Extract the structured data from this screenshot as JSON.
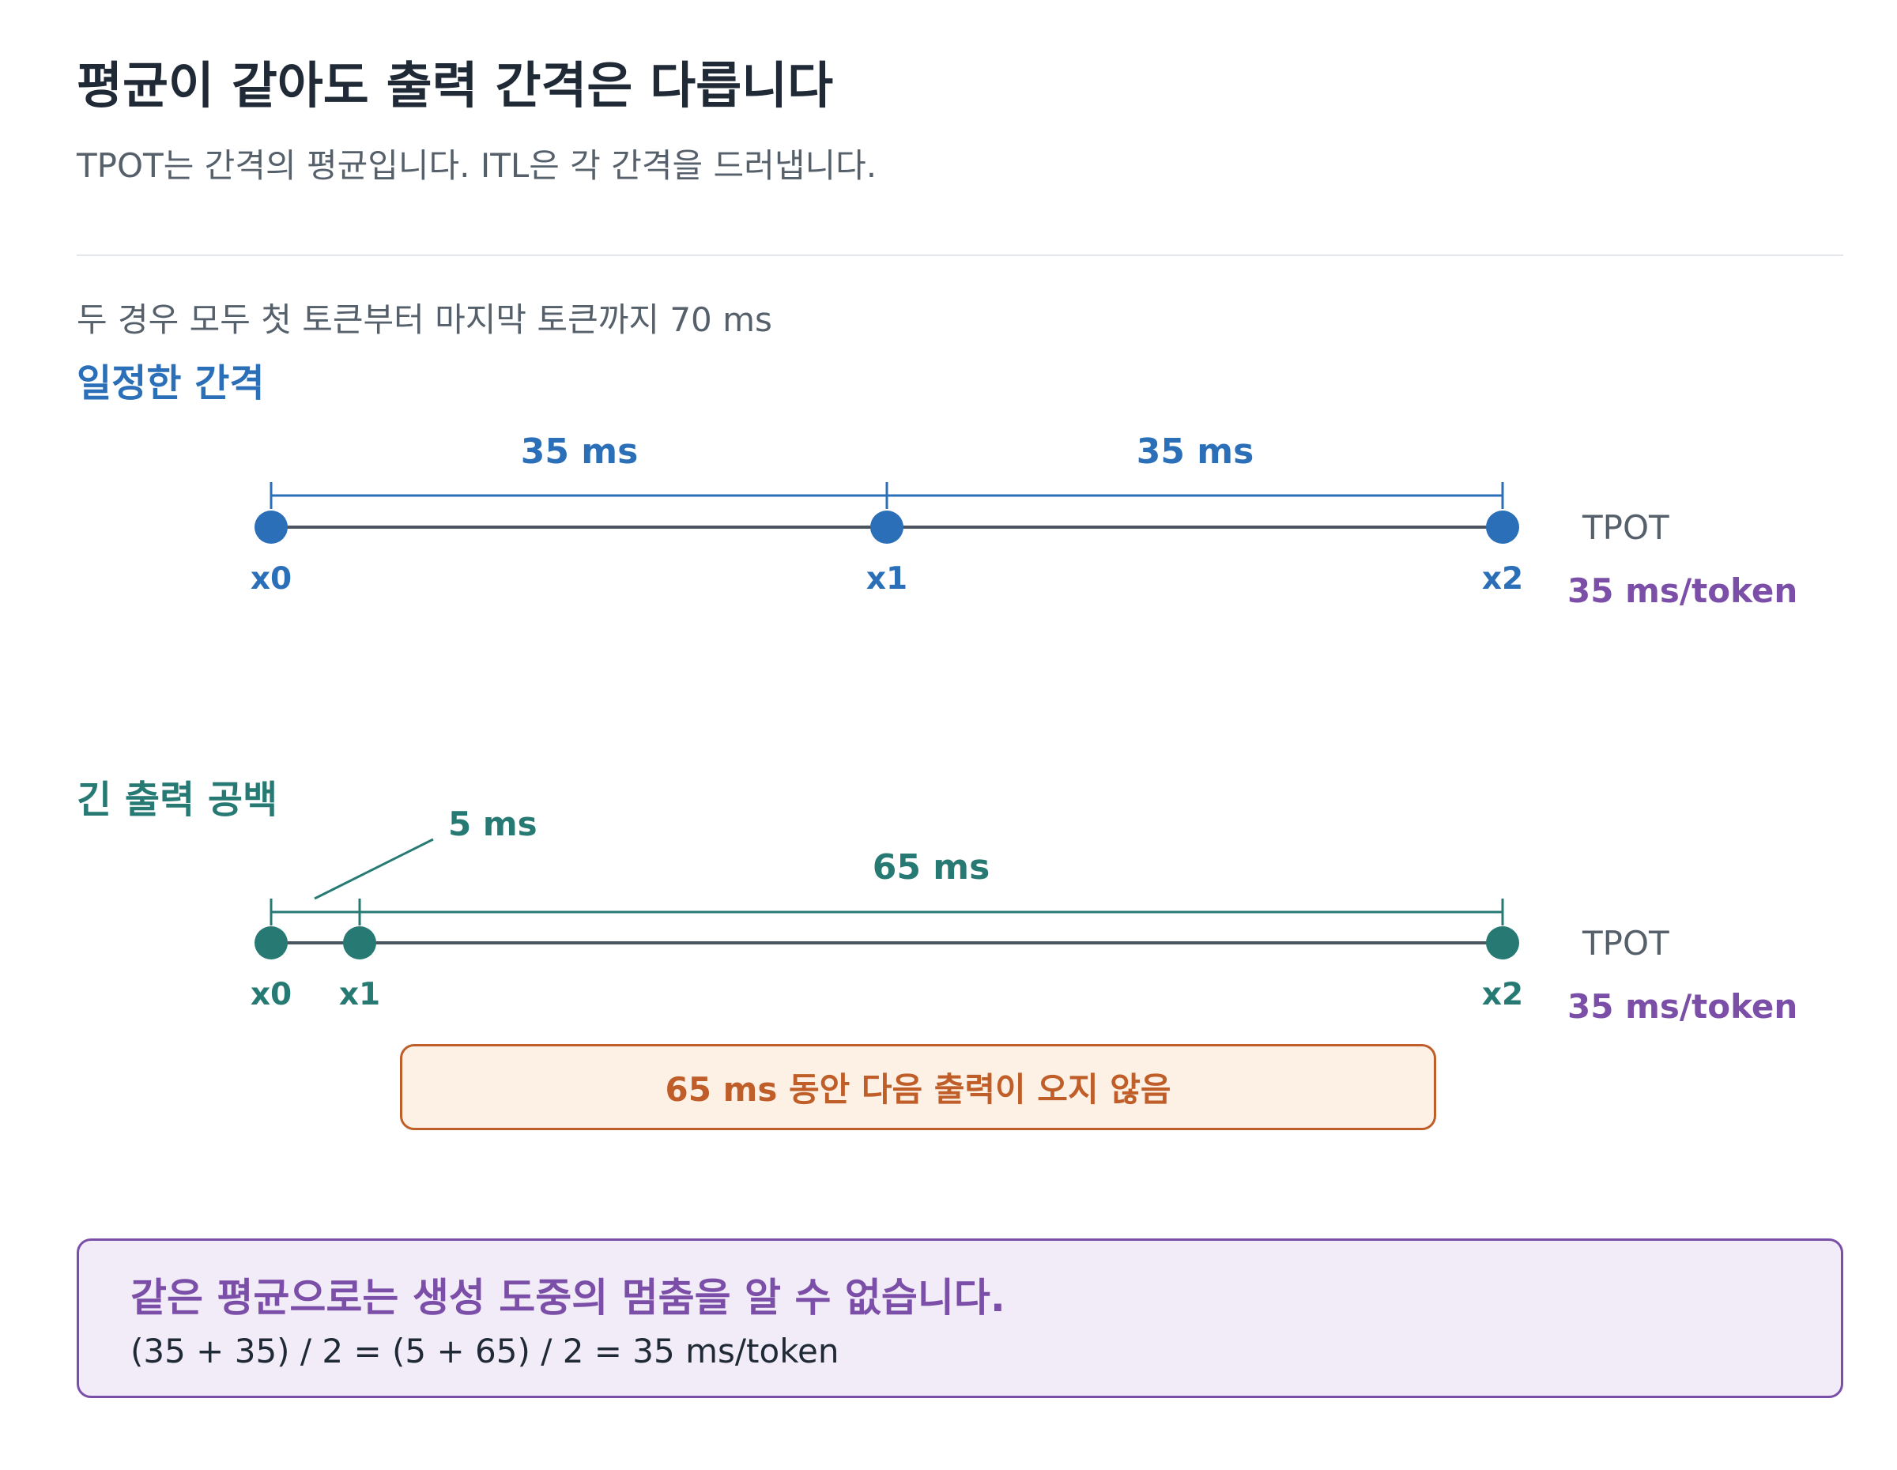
{
  "header": {
    "title": "평균이 같아도 출력 간격은 다릅니다",
    "subtitle": "TPOT는 간격의 평균입니다. ITL은 각 간격을 드러냅니다."
  },
  "note": "두 경우 모두 첫 토큰부터 마지막 토큰까지 70 ms",
  "colors": {
    "steady": "#2a6fb7",
    "gap": "#267a73",
    "tpot_value": "#7b4fa8",
    "warning": "#bf5e28",
    "axis": "#4a5560"
  },
  "steady": {
    "title": "일정한 간격",
    "interval_1": "35 ms",
    "interval_2": "35 ms",
    "tokens": [
      "x0",
      "x1",
      "x2"
    ],
    "times_ms": [
      0,
      35,
      70
    ],
    "tpot_label": "TPOT",
    "tpot_value": "35 ms/token"
  },
  "gap": {
    "title": "긴 출력 공백",
    "interval_1": "5 ms",
    "interval_2": "65 ms",
    "tokens": [
      "x0",
      "x1",
      "x2"
    ],
    "times_ms": [
      0,
      5,
      70
    ],
    "tpot_label": "TPOT",
    "tpot_value": "35 ms/token",
    "warning": "65 ms 동안 다음 출력이 오지 않음"
  },
  "summary": {
    "title": "같은 평균으로는 생성 도중의 멈춤을 알 수 없습니다.",
    "formula": "(35 + 35) / 2 = (5 + 65) / 2 = 35 ms/token"
  }
}
